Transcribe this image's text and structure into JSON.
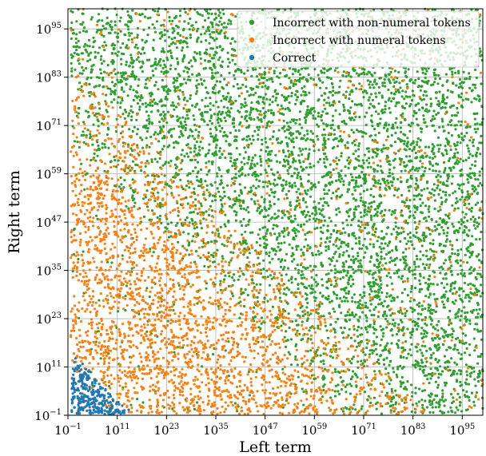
{
  "chart_data": {
    "type": "scatter",
    "title": "",
    "xlabel": "Left term",
    "ylabel": "Right term",
    "xscale": "log",
    "yscale": "log",
    "xlim": [
      0.1,
      1e+100
    ],
    "ylim": [
      0.1,
      1e+100
    ],
    "grid": true,
    "legend_position": "top-right",
    "x_ticks": [
      {
        "base": "10",
        "exp": "−1"
      },
      {
        "base": "10",
        "exp": "11"
      },
      {
        "base": "10",
        "exp": "23"
      },
      {
        "base": "10",
        "exp": "35"
      },
      {
        "base": "10",
        "exp": "47"
      },
      {
        "base": "10",
        "exp": "59"
      },
      {
        "base": "10",
        "exp": "71"
      },
      {
        "base": "10",
        "exp": "83"
      },
      {
        "base": "10",
        "exp": "95"
      }
    ],
    "y_ticks": [
      {
        "base": "10",
        "exp": "−1"
      },
      {
        "base": "10",
        "exp": "11"
      },
      {
        "base": "10",
        "exp": "23"
      },
      {
        "base": "10",
        "exp": "35"
      },
      {
        "base": "10",
        "exp": "47"
      },
      {
        "base": "10",
        "exp": "59"
      },
      {
        "base": "10",
        "exp": "71"
      },
      {
        "base": "10",
        "exp": "83"
      },
      {
        "base": "10",
        "exp": "95"
      }
    ],
    "series": [
      {
        "name": "Incorrect with non-numeral tokens",
        "color": "#2ca02c"
      },
      {
        "name": "Incorrect with numeral tokens",
        "color": "#ff7f0e"
      },
      {
        "name": "Correct",
        "color": "#1f77b4"
      }
    ],
    "legend_order": [
      0,
      1,
      2
    ],
    "region_summary": {
      "correct": "log10(left) + log10(right) below about 12, concentrated near the origin",
      "numeral_tokens": "dominant where log10(left) + log10(right) is below about 75",
      "non_numeral_tokens": "dominant where log10(left) + log10(right) is above about 75"
    }
  }
}
